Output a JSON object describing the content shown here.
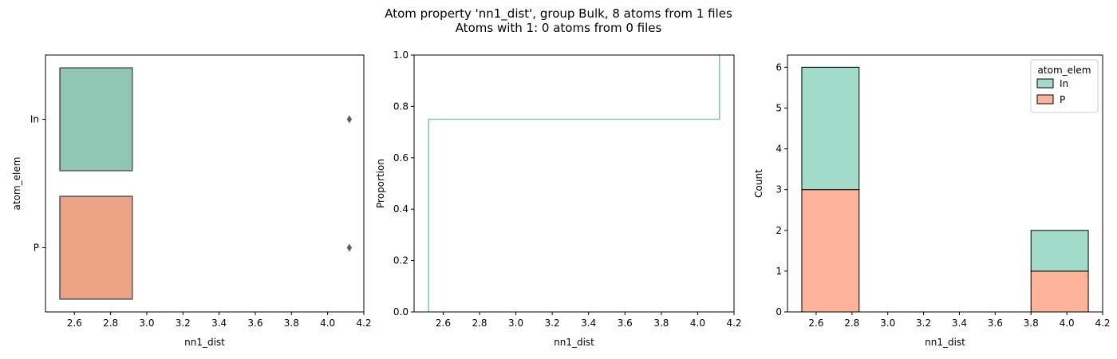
{
  "figure": {
    "title_line1": "Atom property 'nn1_dist', group Bulk, 8 atoms from 1 files",
    "title_line2": "Atoms with 1: 0 atoms from 0 files"
  },
  "chart_data": [
    {
      "type": "box",
      "orientation": "horizontal",
      "xlabel": "nn1_dist",
      "ylabel": "atom_elem",
      "xlim": [
        2.44,
        4.2
      ],
      "xticks": [
        "2.6",
        "2.8",
        "3.0",
        "3.2",
        "3.4",
        "3.6",
        "3.8",
        "4.0",
        "4.2"
      ],
      "categories": [
        "In",
        "P"
      ],
      "boxes": [
        {
          "name": "In",
          "q1": 2.52,
          "median": 2.52,
          "q3": 2.92,
          "whisker_low": 2.52,
          "whisker_high": 2.92,
          "outliers": [
            4.12
          ],
          "color": "#8fc6b4"
        },
        {
          "name": "P",
          "q1": 2.52,
          "median": 2.52,
          "q3": 2.92,
          "whisker_low": 2.52,
          "whisker_high": 2.92,
          "outliers": [
            4.12
          ],
          "color": "#eca386"
        }
      ]
    },
    {
      "type": "ecdf",
      "xlabel": "nn1_dist",
      "ylabel": "Proportion",
      "xlim": [
        2.44,
        4.2
      ],
      "ylim": [
        0,
        1.0
      ],
      "xticks": [
        "2.6",
        "2.8",
        "3.0",
        "3.2",
        "3.4",
        "3.6",
        "3.8",
        "4.0",
        "4.2"
      ],
      "yticks": [
        "0.0",
        "0.2",
        "0.4",
        "0.6",
        "0.8",
        "1.0"
      ],
      "series": [
        {
          "color": "#7fcdb4",
          "steps": [
            [
              2.52,
              0.0
            ],
            [
              2.52,
              0.75
            ],
            [
              4.12,
              0.75
            ],
            [
              4.12,
              1.0
            ]
          ]
        }
      ]
    },
    {
      "type": "bar",
      "stacked": true,
      "xlabel": "nn1_dist",
      "ylabel": "Count",
      "xlim": [
        2.44,
        4.2
      ],
      "ylim": [
        0,
        6.3
      ],
      "xticks": [
        "2.6",
        "2.8",
        "3.0",
        "3.2",
        "3.4",
        "3.6",
        "3.8",
        "4.0",
        "4.2"
      ],
      "yticks": [
        "0",
        "1",
        "2",
        "3",
        "4",
        "5",
        "6"
      ],
      "bin_edges": [
        2.52,
        2.84,
        3.16,
        3.48,
        3.8,
        4.12
      ],
      "legend_position": "top-right",
      "legend_title": "atom_elem",
      "series": [
        {
          "name": "P",
          "color": "#fcb399",
          "values": [
            3,
            0,
            0,
            0,
            1
          ]
        },
        {
          "name": "In",
          "color": "#a3dbcb",
          "values": [
            3,
            0,
            0,
            0,
            1
          ]
        }
      ]
    }
  ]
}
